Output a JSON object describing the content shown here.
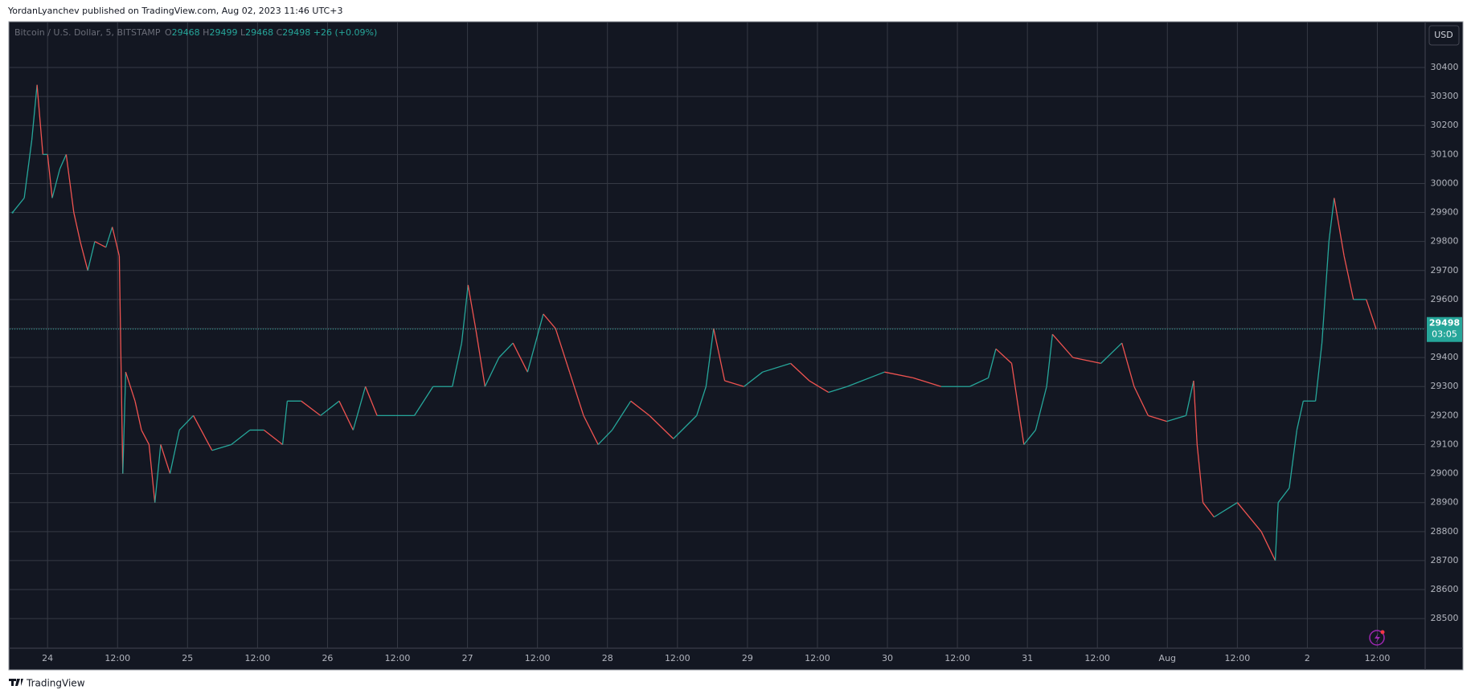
{
  "header": {
    "byline": "YordanLyanchev published on TradingView.com, Aug 02, 2023 11:46 UTC+3"
  },
  "footer": {
    "brand": "TradingView"
  },
  "chart_data": {
    "type": "line",
    "symbol": "Bitcoin / U.S. Dollar, 5, BITSTAMP",
    "ohlc": {
      "o_label": "O",
      "open": 29468,
      "h_label": "H",
      "high": 29499,
      "l_label": "L",
      "low": 29468,
      "c_label": "C",
      "close": 29498,
      "change": "+26 (+0.09%)"
    },
    "currency": "USD",
    "countdown": "03:05",
    "up_color": "#26a69a",
    "down_color": "#ef5350",
    "grid": true,
    "x": [
      -6,
      -4,
      -2.7,
      -1.8,
      -0.8,
      0,
      0.8,
      2.1,
      3.2,
      4.5,
      5.6,
      6.9,
      8.1,
      10,
      11.1,
      12.3,
      12.9,
      13.4,
      15,
      16.1,
      17.4,
      18.4,
      19.4,
      21,
      22.6,
      25,
      28.2,
      31.5,
      34.7,
      37.1,
      40.3,
      41.1,
      43.5,
      46.8,
      50,
      52.4,
      54.5,
      56.5,
      59.7,
      62.9,
      66.1,
      69.4,
      71,
      72.1,
      73.4,
      75,
      77.4,
      79.8,
      82.3,
      85,
      87.1,
      89.5,
      91.9,
      94.4,
      96.8,
      100,
      103.2,
      107.3,
      111.3,
      112.9,
      114.2,
      116.1,
      119.4,
      122.6,
      127.4,
      130.6,
      133.9,
      137.1,
      143.5,
      148.4,
      153.2,
      158.1,
      161.3,
      162.6,
      165.3,
      167.4,
      169.4,
      171.3,
      172.3,
      175.8,
      180.6,
      184.2,
      186.3,
      188.7,
      191.9,
      195.2,
      196.5,
      197.1,
      198.1,
      200,
      204,
      208.1,
      210.5,
      211,
      212.9,
      214.2,
      215.3,
      217.4,
      218.5,
      219.7,
      220.6,
      222.3,
      223.9,
      226.1,
      227.8
    ],
    "series": [
      {
        "values": [
          29900,
          29950,
          30150,
          30340,
          30100,
          30100,
          29950,
          30050,
          30100,
          29900,
          29800,
          29700,
          29800,
          29780,
          29850,
          29750,
          29000,
          29350,
          29250,
          29150,
          29100,
          28900,
          29100,
          29000,
          29150,
          29200,
          29080,
          29100,
          29150,
          29150,
          29100,
          29250,
          29250,
          29200,
          29250,
          29150,
          29300,
          29200,
          29200,
          29200,
          29300,
          29300,
          29450,
          29650,
          29500,
          29300,
          29400,
          29450,
          29350,
          29550,
          29500,
          29350,
          29200,
          29100,
          29150,
          29250,
          29200,
          29120,
          29200,
          29300,
          29500,
          29320,
          29300,
          29350,
          29380,
          29320,
          29280,
          29300,
          29350,
          29330,
          29300,
          29300,
          29330,
          29430,
          29380,
          29100,
          29150,
          29300,
          29480,
          29400,
          29380,
          29450,
          29300,
          29200,
          29180,
          29200,
          29320,
          29100,
          28900,
          28850,
          28900,
          28800,
          28700,
          28900,
          28950,
          29150,
          29250,
          29250,
          29450,
          29800,
          29950,
          29750,
          29600,
          29600,
          29498
        ]
      }
    ],
    "xlim": [
      -6.5,
      236.2
    ],
    "ylim": [
      28398,
      30555
    ],
    "xticks": [
      {
        "value": 0,
        "label": "24"
      },
      {
        "value": 12,
        "label": "12:00"
      },
      {
        "value": 24,
        "label": "25"
      },
      {
        "value": 36,
        "label": "12:00"
      },
      {
        "value": 48,
        "label": "26"
      },
      {
        "value": 60,
        "label": "12:00"
      },
      {
        "value": 72,
        "label": "27"
      },
      {
        "value": 84,
        "label": "12:00"
      },
      {
        "value": 96,
        "label": "28"
      },
      {
        "value": 108,
        "label": "12:00"
      },
      {
        "value": 120,
        "label": "29"
      },
      {
        "value": 132,
        "label": "12:00"
      },
      {
        "value": 144,
        "label": "30"
      },
      {
        "value": 156,
        "label": "12:00"
      },
      {
        "value": 168,
        "label": "31"
      },
      {
        "value": 180,
        "label": "12:00"
      },
      {
        "value": 192,
        "label": "Aug"
      },
      {
        "value": 204,
        "label": "12:00"
      },
      {
        "value": 216,
        "label": "2"
      },
      {
        "value": 228,
        "label": "12:00"
      }
    ],
    "yticks": [
      28500,
      28600,
      28700,
      28800,
      28900,
      29000,
      29100,
      29200,
      29300,
      29400,
      29500,
      29600,
      29700,
      29800,
      29900,
      30000,
      30100,
      30200,
      30300,
      30400
    ]
  }
}
